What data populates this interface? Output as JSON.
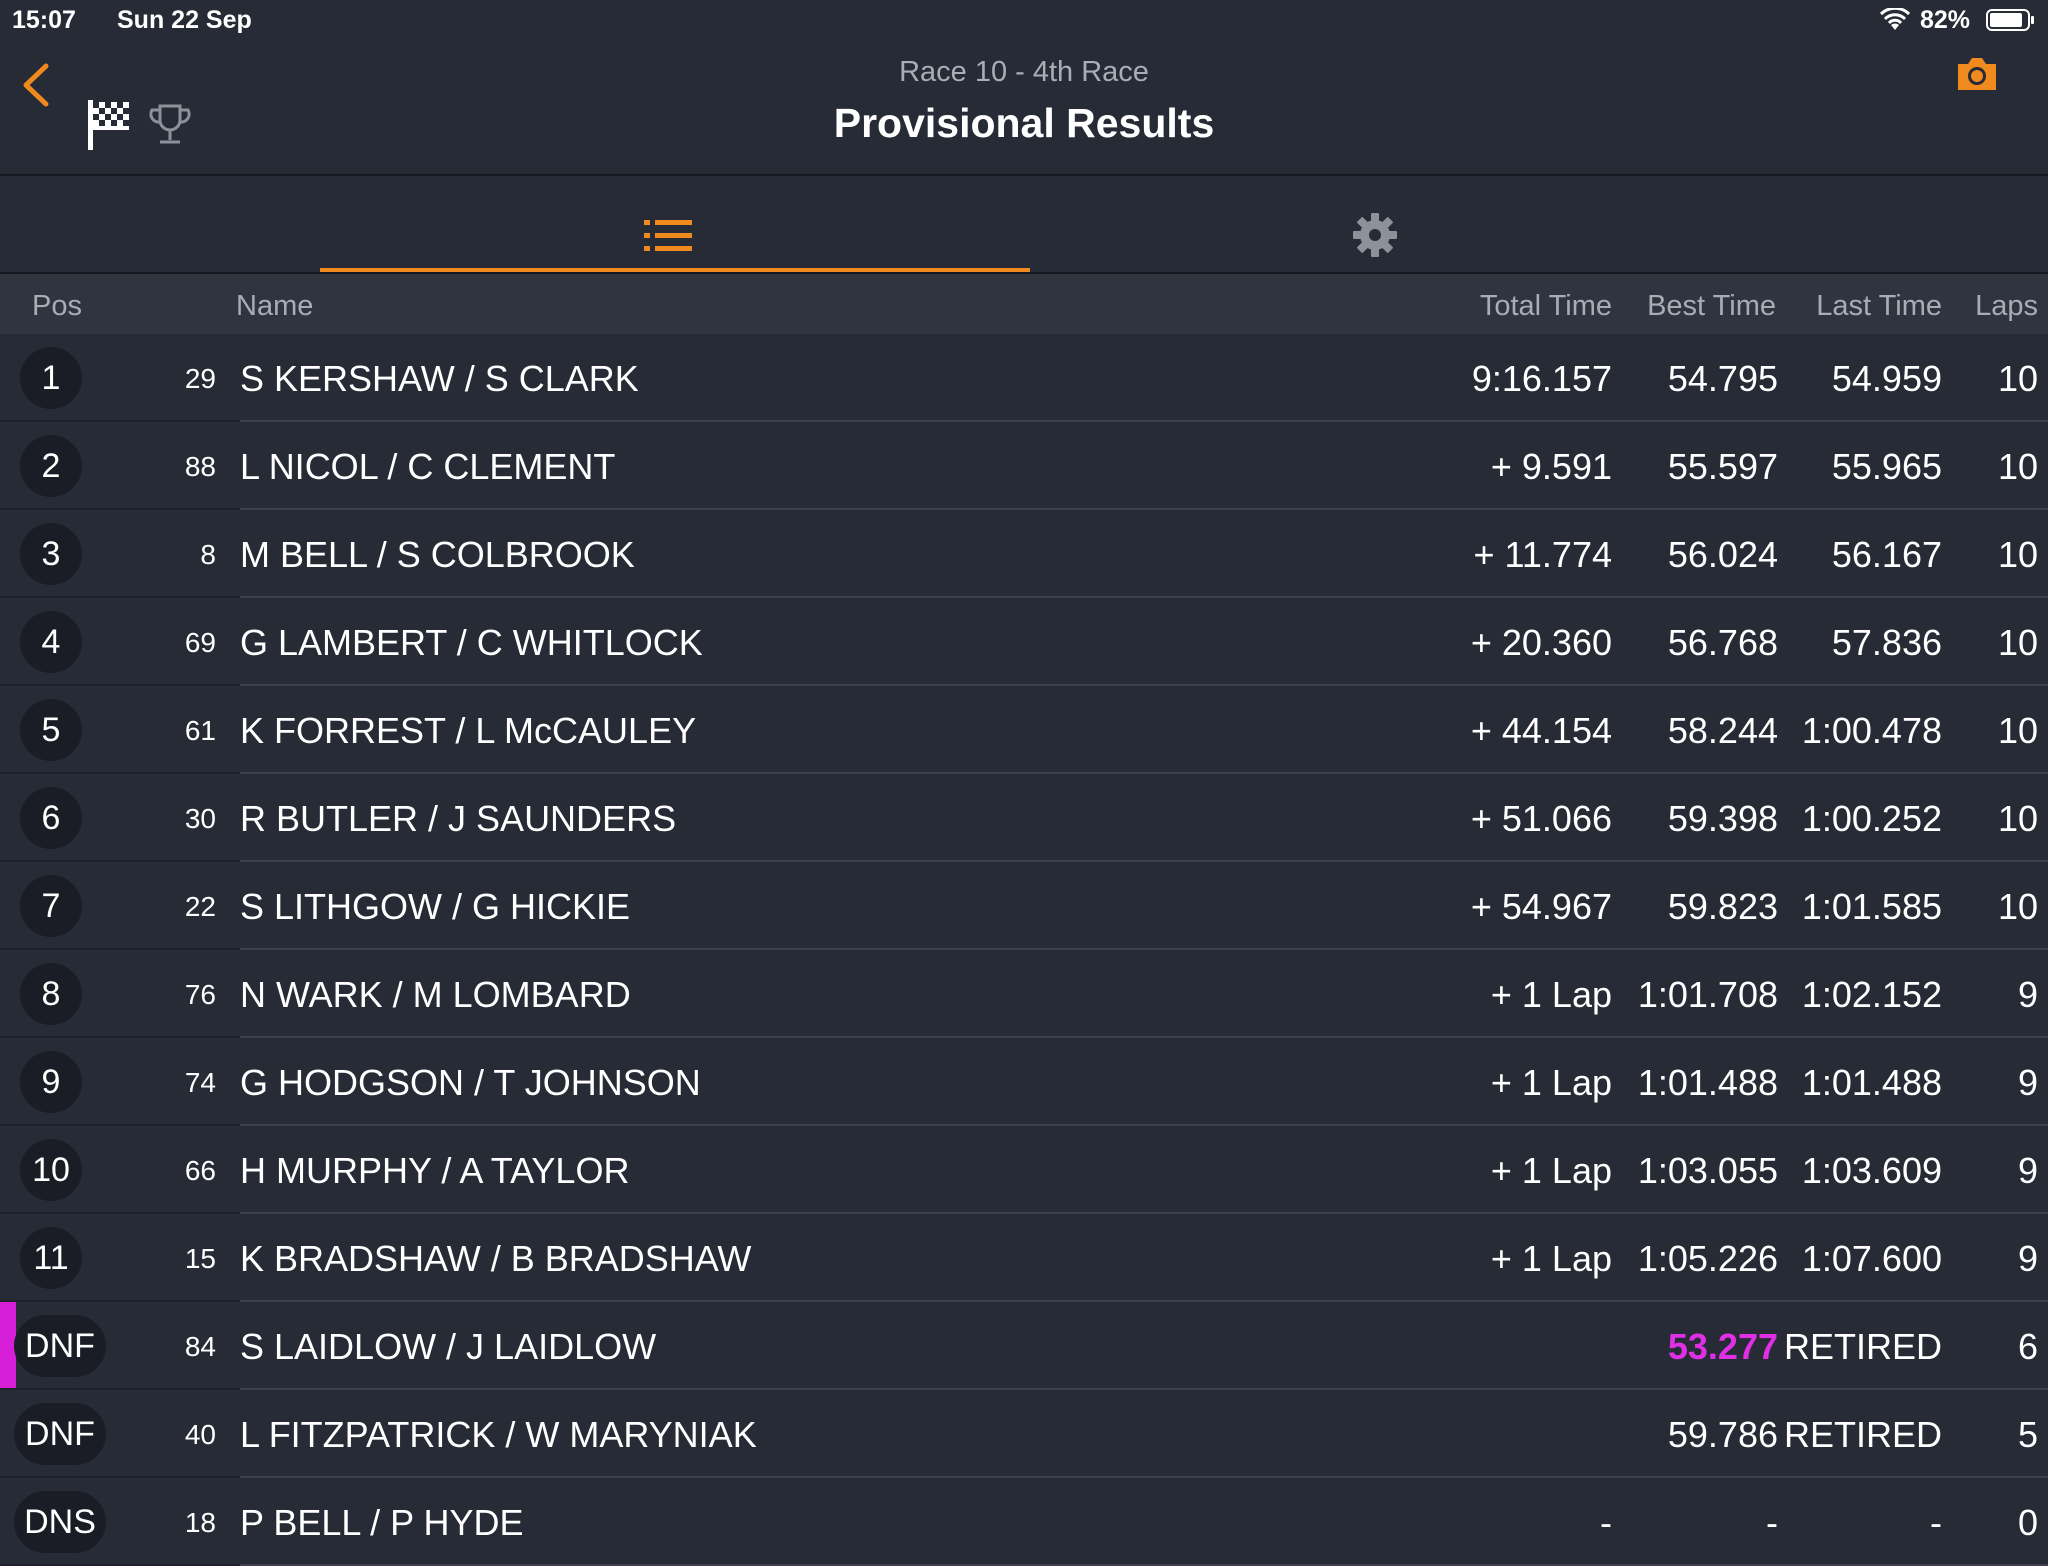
{
  "status_bar": {
    "time": "15:07",
    "date": "Sun 22 Sep",
    "battery": "82%"
  },
  "header": {
    "subtitle": "Race 10 - 4th Race",
    "title": "Provisional Results"
  },
  "columns": {
    "pos": "Pos",
    "name": "Name",
    "total": "Total Time",
    "best": "Best Time",
    "last": "Last Time",
    "laps": "Laps"
  },
  "colors": {
    "accent": "#f0891e",
    "fastest": "#e030e6",
    "background": "#272b35"
  },
  "results": [
    {
      "pos": "1",
      "num": "29",
      "name": "S KERSHAW / S CLARK",
      "total": "9:16.157",
      "best": "54.795",
      "last": "54.959",
      "laps": "10"
    },
    {
      "pos": "2",
      "num": "88",
      "name": "L NICOL / C CLEMENT",
      "total": "+ 9.591",
      "best": "55.597",
      "last": "55.965",
      "laps": "10"
    },
    {
      "pos": "3",
      "num": "8",
      "name": "M BELL / S COLBROOK",
      "total": "+ 11.774",
      "best": "56.024",
      "last": "56.167",
      "laps": "10"
    },
    {
      "pos": "4",
      "num": "69",
      "name": "G LAMBERT / C WHITLOCK",
      "total": "+ 20.360",
      "best": "56.768",
      "last": "57.836",
      "laps": "10"
    },
    {
      "pos": "5",
      "num": "61",
      "name": "K FORREST / L McCAULEY",
      "total": "+ 44.154",
      "best": "58.244",
      "last": "1:00.478",
      "laps": "10"
    },
    {
      "pos": "6",
      "num": "30",
      "name": "R BUTLER / J SAUNDERS",
      "total": "+ 51.066",
      "best": "59.398",
      "last": "1:00.252",
      "laps": "10"
    },
    {
      "pos": "7",
      "num": "22",
      "name": "S LITHGOW / G HICKIE",
      "total": "+ 54.967",
      "best": "59.823",
      "last": "1:01.585",
      "laps": "10"
    },
    {
      "pos": "8",
      "num": "76",
      "name": "N WARK / M LOMBARD",
      "total": "+ 1 Lap",
      "best": "1:01.708",
      "last": "1:02.152",
      "laps": "9"
    },
    {
      "pos": "9",
      "num": "74",
      "name": "G HODGSON / T JOHNSON",
      "total": "+ 1 Lap",
      "best": "1:01.488",
      "last": "1:01.488",
      "laps": "9"
    },
    {
      "pos": "10",
      "num": "66",
      "name": "H MURPHY / A TAYLOR",
      "total": "+ 1 Lap",
      "best": "1:03.055",
      "last": "1:03.609",
      "laps": "9"
    },
    {
      "pos": "11",
      "num": "15",
      "name": "K BRADSHAW / B BRADSHAW",
      "total": "+ 1 Lap",
      "best": "1:05.226",
      "last": "1:07.600",
      "laps": "9"
    },
    {
      "pos": "DNF",
      "num": "84",
      "name": "S LAIDLOW / J LAIDLOW",
      "total": "",
      "best": "53.277",
      "last": "RETIRED",
      "laps": "6",
      "fastest": true
    },
    {
      "pos": "DNF",
      "num": "40",
      "name": "L FITZPATRICK / W MARYNIAK",
      "total": "",
      "best": "59.786",
      "last": "RETIRED",
      "laps": "5"
    },
    {
      "pos": "DNS",
      "num": "18",
      "name": "P BELL / P HYDE",
      "total": "-",
      "best": "-",
      "last": "-",
      "laps": "0"
    }
  ]
}
